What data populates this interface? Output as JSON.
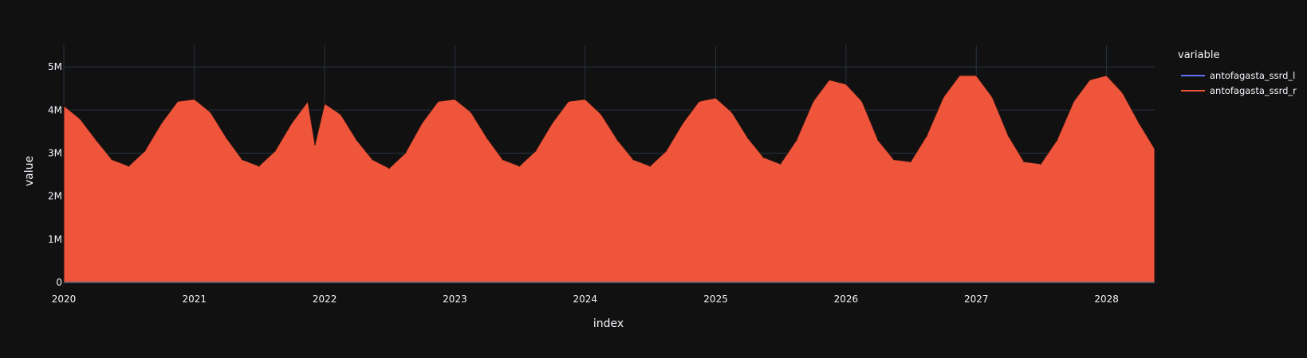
{
  "chart_data": {
    "type": "area",
    "title": "",
    "xlabel": "index",
    "ylabel": "value",
    "xlim": [
      "2020-01-01",
      "2028-05-15"
    ],
    "ylim": [
      0,
      5500000
    ],
    "x_ticks": [
      "2020",
      "2021",
      "2022",
      "2023",
      "2024",
      "2025",
      "2026",
      "2027",
      "2028"
    ],
    "y_ticks": [
      {
        "value": 0,
        "label": "0"
      },
      {
        "value": 1000000,
        "label": "1M"
      },
      {
        "value": 2000000,
        "label": "2M"
      },
      {
        "value": 3000000,
        "label": "3M"
      },
      {
        "value": 4000000,
        "label": "4M"
      },
      {
        "value": 5000000,
        "label": "5M"
      }
    ],
    "grid": true,
    "legend": {
      "title": "variable",
      "position": "top-right"
    },
    "series": [
      {
        "name": "antofagasta_ssrd_l",
        "color": "#636efa",
        "x": [],
        "values": []
      },
      {
        "name": "antofagasta_ssrd_r",
        "color": "#ef553b",
        "x": [
          "2020-01-01",
          "2020-02-15",
          "2020-04-01",
          "2020-05-15",
          "2020-07-01",
          "2020-08-15",
          "2020-10-01",
          "2020-11-15",
          "2021-01-01",
          "2021-02-15",
          "2021-04-01",
          "2021-05-15",
          "2021-07-01",
          "2021-08-15",
          "2021-10-01",
          "2021-11-15",
          "2021-12-05",
          "2022-01-01",
          "2022-02-15",
          "2022-04-01",
          "2022-05-15",
          "2022-07-01",
          "2022-08-15",
          "2022-10-01",
          "2022-11-15",
          "2023-01-01",
          "2023-02-15",
          "2023-04-01",
          "2023-05-15",
          "2023-07-01",
          "2023-08-15",
          "2023-10-01",
          "2023-11-15",
          "2024-01-01",
          "2024-02-15",
          "2024-04-01",
          "2024-05-15",
          "2024-07-01",
          "2024-08-15",
          "2024-10-01",
          "2024-11-15",
          "2025-01-01",
          "2025-02-15",
          "2025-04-01",
          "2025-05-15",
          "2025-07-01",
          "2025-08-15",
          "2025-10-01",
          "2025-11-15",
          "2026-01-01",
          "2026-02-15",
          "2026-04-01",
          "2026-05-15",
          "2026-07-01",
          "2026-08-15",
          "2026-10-01",
          "2026-11-15",
          "2027-01-01",
          "2027-02-15",
          "2027-04-01",
          "2027-05-15",
          "2027-07-01",
          "2027-08-15",
          "2027-10-01",
          "2027-11-15",
          "2028-01-01",
          "2028-02-15",
          "2028-04-01",
          "2028-05-15"
        ],
        "values": [
          4100000,
          3800000,
          3300000,
          2850000,
          2700000,
          3050000,
          3700000,
          4200000,
          4250000,
          3950000,
          3350000,
          2850000,
          2700000,
          3050000,
          3700000,
          4200000,
          3200000,
          4150000,
          3900000,
          3300000,
          2850000,
          2650000,
          3000000,
          3700000,
          4200000,
          4250000,
          3950000,
          3350000,
          2850000,
          2700000,
          3050000,
          3700000,
          4200000,
          4250000,
          3900000,
          3300000,
          2850000,
          2700000,
          3050000,
          3700000,
          4200000,
          4280000,
          3950000,
          3350000,
          2900000,
          2750000,
          3300000,
          4200000,
          4700000,
          4600000,
          4200000,
          3300000,
          2850000,
          2800000,
          3400000,
          4300000,
          4800000,
          4800000,
          4300000,
          3400000,
          2800000,
          2750000,
          3300000,
          4200000,
          4700000,
          4800000,
          4400000,
          3700000,
          3100000
        ]
      }
    ]
  }
}
